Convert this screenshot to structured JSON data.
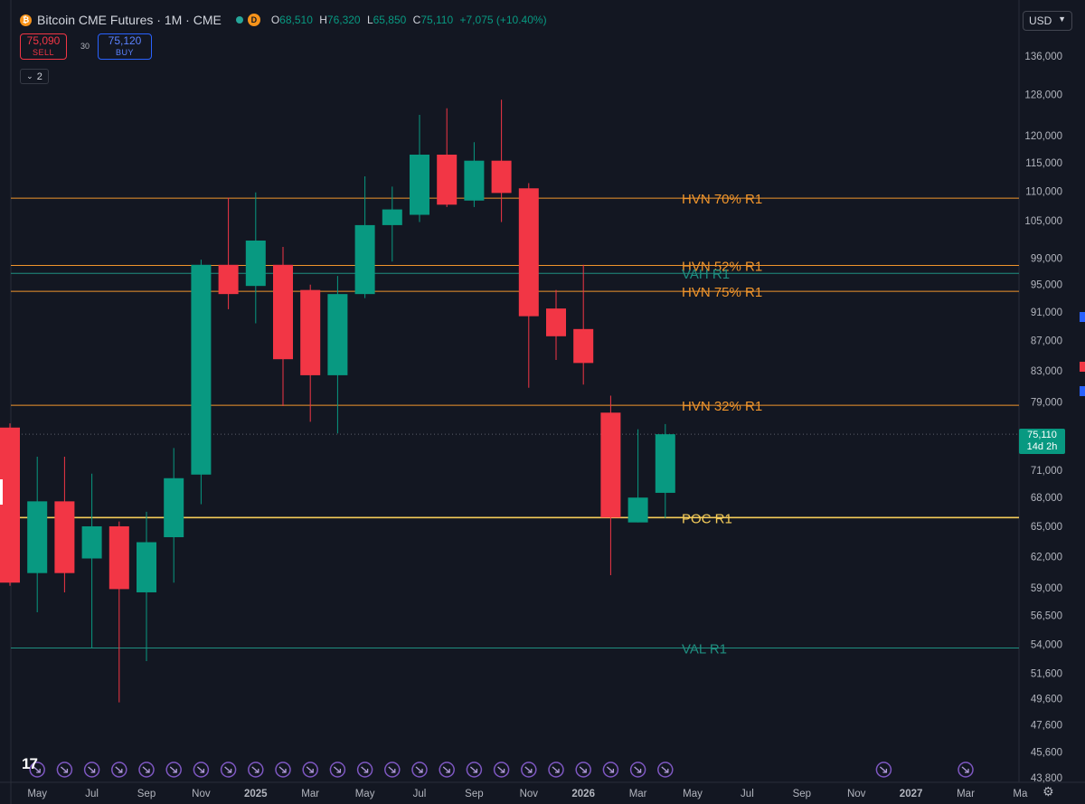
{
  "header": {
    "title": "Bitcoin CME Futures · 1M · CME",
    "coin_icon": "bitcoin-icon",
    "badge": "D",
    "ohlc": {
      "o_label": "O",
      "o": "68,510",
      "h_label": "H",
      "h": "76,320",
      "l_label": "L",
      "l": "65,850",
      "c_label": "C",
      "c": "75,110",
      "change": "+7,075 (+10.40%)"
    }
  },
  "trade": {
    "sell_price": "75,090",
    "sell_label": "SELL",
    "spread": "30",
    "buy_price": "75,120",
    "buy_label": "BUY"
  },
  "indicators_toggle": {
    "count": "2"
  },
  "currency": "USD",
  "last_price": {
    "value": "75,110",
    "countdown": "14d 2h"
  },
  "colors": {
    "up": "#089981",
    "down": "#f23645",
    "hvn": "#f0952c",
    "va": "#1f8f80",
    "poc": "#f5cc5a",
    "bg": "#131722",
    "grid": "#363a45"
  },
  "chart_data": {
    "type": "candlestick",
    "title": "Bitcoin CME Futures · 1M · CME",
    "y_scale": "log",
    "ylim": [
      43800,
      141000
    ],
    "y_ticks": [
      "136,000",
      "128,000",
      "120,000",
      "115,000",
      "110,000",
      "105,000",
      "99,000",
      "95,000",
      "91,000",
      "87,000",
      "83,000",
      "79,000",
      "71,000",
      "68,000",
      "65,000",
      "62,000",
      "59,000",
      "56,500",
      "54,000",
      "51,600",
      "49,600",
      "47,600",
      "45,600",
      "43,800"
    ],
    "x_ticks": [
      "May",
      "Jul",
      "Sep",
      "Nov",
      "2025",
      "Mar",
      "May",
      "Jul",
      "Sep",
      "Nov",
      "2026",
      "Mar",
      "May",
      "Jul",
      "Sep",
      "Nov",
      "2027",
      "Mar",
      "Ma"
    ],
    "first_month": "2024-04",
    "candles": [
      {
        "m": "2024-04",
        "o": 75900,
        "h": 76400,
        "l": 59200,
        "c": 59500
      },
      {
        "m": "2024-05",
        "o": 60400,
        "h": 72500,
        "l": 56800,
        "c": 67600
      },
      {
        "m": "2024-06",
        "o": 67600,
        "h": 72500,
        "l": 58600,
        "c": 60400
      },
      {
        "m": "2024-07",
        "o": 61800,
        "h": 70600,
        "l": 53700,
        "c": 65000
      },
      {
        "m": "2024-08",
        "o": 65000,
        "h": 65500,
        "l": 49300,
        "c": 58900
      },
      {
        "m": "2024-09",
        "o": 58600,
        "h": 66500,
        "l": 52600,
        "c": 63400
      },
      {
        "m": "2024-10",
        "o": 63900,
        "h": 73500,
        "l": 59500,
        "c": 70100
      },
      {
        "m": "2024-11",
        "o": 70500,
        "h": 98800,
        "l": 67300,
        "c": 98000
      },
      {
        "m": "2024-12",
        "o": 98000,
        "h": 108900,
        "l": 91400,
        "c": 93600
      },
      {
        "m": "2025-01",
        "o": 94800,
        "h": 109800,
        "l": 89400,
        "c": 101800
      },
      {
        "m": "2025-02",
        "o": 98000,
        "h": 100800,
        "l": 78500,
        "c": 84500
      },
      {
        "m": "2025-03",
        "o": 94200,
        "h": 95000,
        "l": 76600,
        "c": 82400
      },
      {
        "m": "2025-04",
        "o": 82400,
        "h": 96300,
        "l": 75200,
        "c": 93600
      },
      {
        "m": "2025-05",
        "o": 93600,
        "h": 112600,
        "l": 93000,
        "c": 104300
      },
      {
        "m": "2025-06",
        "o": 104300,
        "h": 110800,
        "l": 98500,
        "c": 106900
      },
      {
        "m": "2025-07",
        "o": 106000,
        "h": 124000,
        "l": 104800,
        "c": 116500
      },
      {
        "m": "2025-08",
        "o": 116500,
        "h": 125300,
        "l": 107300,
        "c": 107700
      },
      {
        "m": "2025-09",
        "o": 108400,
        "h": 118800,
        "l": 107300,
        "c": 115400
      },
      {
        "m": "2025-10",
        "o": 115400,
        "h": 127000,
        "l": 104800,
        "c": 109700
      },
      {
        "m": "2025-11",
        "o": 110500,
        "h": 111400,
        "l": 80800,
        "c": 90400
      },
      {
        "m": "2025-12",
        "o": 91500,
        "h": 94200,
        "l": 84400,
        "c": 87600
      },
      {
        "m": "2026-01",
        "o": 88600,
        "h": 98000,
        "l": 81200,
        "c": 84000
      },
      {
        "m": "2026-02",
        "o": 77700,
        "h": 79800,
        "l": 60200,
        "c": 65900
      },
      {
        "m": "2026-03",
        "o": 65400,
        "h": 75700,
        "l": 65400,
        "c": 68000
      },
      {
        "m": "2026-04",
        "o": 68510,
        "h": 76320,
        "l": 65850,
        "c": 75110
      }
    ],
    "levels": [
      {
        "label": "HVN 70% R1",
        "price": 108800,
        "kind": "hvn"
      },
      {
        "label": "HVN 52% R1",
        "price": 97900,
        "kind": "hvn"
      },
      {
        "label": "VAH R1",
        "price": 96700,
        "kind": "va"
      },
      {
        "label": "HVN 75% R1",
        "price": 94000,
        "kind": "hvn"
      },
      {
        "label": "HVN 32% R1",
        "price": 78600,
        "kind": "hvn"
      },
      {
        "label": "POC R1",
        "price": 65900,
        "kind": "poc"
      },
      {
        "label": "VAL R1",
        "price": 53700,
        "kind": "va"
      }
    ],
    "event_marker_count": 26,
    "grid": false,
    "last_price_line": 75110
  },
  "branding": {
    "logo": "tv-logo"
  },
  "settings_icon": "gear-icon"
}
